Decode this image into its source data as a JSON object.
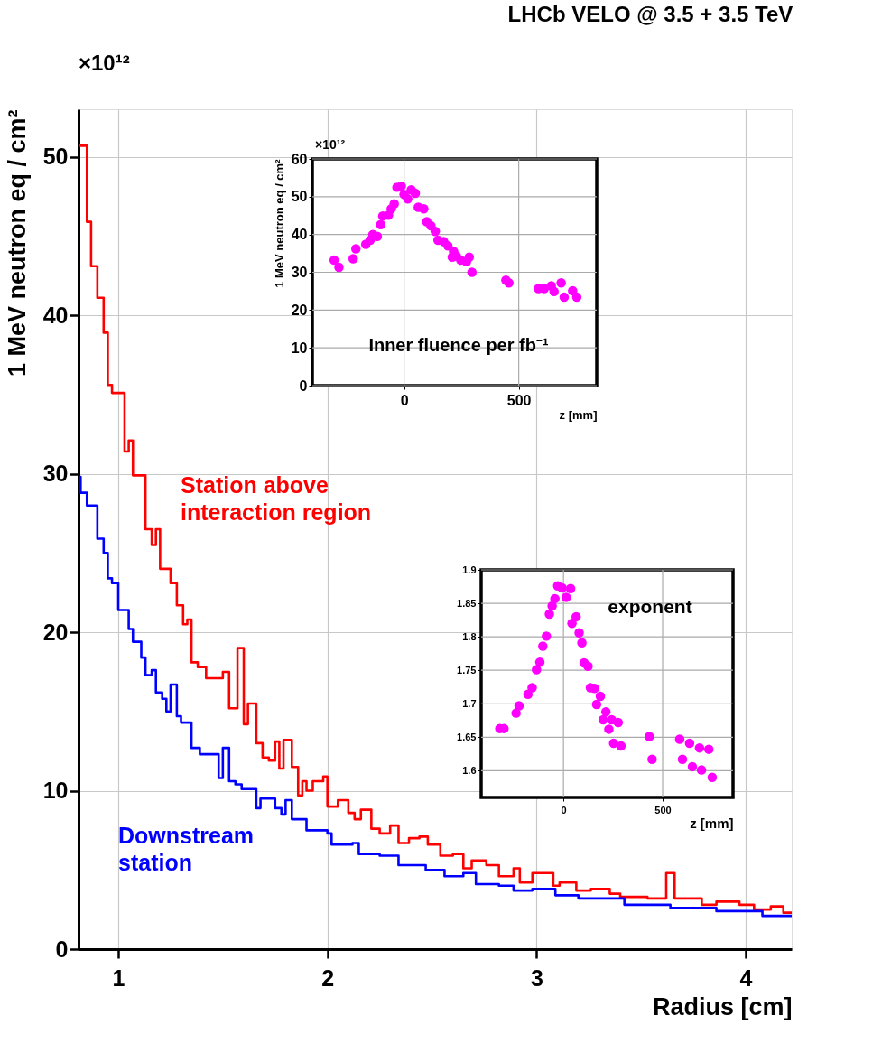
{
  "chart_data": [
    {
      "type": "step",
      "title": "LHCb VELO @ 3.5 + 3.5 TeV",
      "xlabel": "Radius [cm]",
      "ylabel": "1 MeV neutron eq / cm²",
      "annotations": [
        "×10¹²"
      ],
      "xlim": [
        0.81,
        4.22
      ],
      "xticks": [
        1,
        2,
        3,
        4
      ],
      "ylim": [
        0,
        53
      ],
      "yticks": [
        0,
        10,
        20,
        30,
        40,
        50
      ],
      "grid": true,
      "series": [
        {
          "name": "Station above interaction region",
          "color": "#ff0000",
          "x": [
            0.81,
            0.85,
            0.87,
            0.9,
            0.93,
            0.95,
            0.97,
            1.03,
            1.05,
            1.07,
            1.13,
            1.16,
            1.18,
            1.2,
            1.25,
            1.28,
            1.31,
            1.33,
            1.35,
            1.38,
            1.42,
            1.5,
            1.53,
            1.57,
            1.6,
            1.62,
            1.66,
            1.69,
            1.72,
            1.75,
            1.77,
            1.79,
            1.83,
            1.86,
            1.88,
            1.9,
            1.93,
            1.98,
            2.0,
            2.05,
            2.1,
            2.13,
            2.16,
            2.21,
            2.25,
            2.3,
            2.34,
            2.39,
            2.44,
            2.48,
            2.54,
            2.6,
            2.65,
            2.69,
            2.76,
            2.82,
            2.89,
            2.92,
            2.98,
            3.08,
            3.11,
            3.19,
            3.26,
            3.35,
            3.4,
            3.53,
            3.62,
            3.66,
            3.7,
            3.79,
            3.86,
            3.97,
            4.04,
            4.12,
            4.18,
            4.22
          ],
          "values": [
            50.7,
            45.9,
            43.1,
            41.1,
            38.9,
            35.6,
            35.1,
            31.4,
            32.1,
            29.9,
            26.5,
            25.5,
            26.5,
            24.0,
            23.1,
            21.7,
            20.5,
            20.8,
            18.1,
            17.8,
            17.1,
            17.5,
            15.2,
            19.0,
            14.2,
            15.5,
            13.0,
            12.1,
            11.9,
            13.1,
            11.4,
            13.2,
            11.5,
            9.7,
            10.6,
            10.0,
            10.6,
            10.9,
            9.0,
            9.4,
            8.6,
            8.2,
            8.8,
            7.6,
            7.3,
            7.8,
            6.7,
            7.0,
            7.1,
            6.6,
            5.9,
            6.0,
            5.1,
            5.6,
            5.3,
            4.6,
            5.1,
            4.2,
            4.8,
            4.0,
            4.2,
            3.7,
            3.8,
            3.5,
            3.3,
            3.2,
            4.8,
            3.2,
            3.2,
            2.8,
            3.0,
            2.8,
            2.5,
            2.7,
            2.3,
            2.3
          ]
        },
        {
          "name": "Downstream station",
          "color": "#0000ff",
          "x": [
            0.81,
            0.82,
            0.85,
            0.9,
            0.93,
            0.95,
            0.97,
            1.0,
            1.05,
            1.07,
            1.11,
            1.13,
            1.16,
            1.18,
            1.21,
            1.23,
            1.25,
            1.28,
            1.3,
            1.35,
            1.39,
            1.48,
            1.5,
            1.53,
            1.56,
            1.59,
            1.66,
            1.68,
            1.75,
            1.78,
            1.8,
            1.83,
            1.9,
            2.0,
            2.02,
            2.12,
            2.15,
            2.25,
            2.34,
            2.47,
            2.56,
            2.65,
            2.71,
            2.82,
            2.89,
            2.98,
            3.09,
            3.2,
            3.42,
            3.64,
            3.86,
            4.08,
            4.22
          ],
          "values": [
            29.8,
            28.8,
            28.0,
            25.9,
            25.0,
            23.4,
            23.1,
            21.4,
            20.2,
            19.4,
            18.4,
            17.3,
            17.6,
            16.2,
            15.8,
            15.0,
            16.7,
            14.7,
            14.3,
            12.7,
            12.3,
            10.8,
            12.7,
            10.6,
            10.4,
            10.1,
            8.9,
            9.5,
            8.9,
            8.5,
            9.4,
            8.2,
            7.5,
            7.3,
            6.6,
            6.7,
            6.0,
            5.9,
            5.3,
            5.0,
            4.6,
            4.8,
            4.1,
            4.0,
            3.7,
            3.8,
            3.4,
            3.2,
            2.8,
            2.6,
            2.4,
            2.1,
            2.1
          ]
        }
      ]
    },
    {
      "type": "scatter",
      "xlabel": "z [mm]",
      "ylabel": "1 MeV neutron eq / cm²",
      "annotations": [
        "×10¹²",
        "Inner fluence per fb⁻¹"
      ],
      "xlim": [
        -400,
        840
      ],
      "xticks": [
        0,
        500
      ],
      "ylim": [
        0,
        60
      ],
      "yticks": [
        0,
        10,
        20,
        30,
        40,
        50,
        60
      ],
      "grid": true,
      "marker": "circle",
      "color": "#ff00ff",
      "x": [
        -305,
        -284,
        -222,
        -210,
        -167,
        -148,
        -136,
        -117,
        -102,
        -93,
        -68,
        -56,
        -43,
        -31,
        -12,
        0,
        16,
        31,
        49,
        62,
        86,
        99,
        117,
        136,
        148,
        173,
        191,
        216,
        210,
        228,
        247,
        272,
        284,
        296,
        444,
        457,
        586,
        611,
        642,
        654,
        685,
        698,
        735,
        753
      ],
      "values": [
        33.2,
        31.3,
        33.6,
        36.2,
        37.4,
        38.5,
        40.0,
        39.5,
        42.6,
        44.9,
        45.1,
        46.8,
        48.1,
        52.5,
        52.8,
        50.6,
        49.4,
        51.8,
        50.9,
        47.2,
        46.8,
        43.4,
        42.3,
        40.8,
        38.5,
        38.1,
        37.0,
        35.5,
        34.0,
        34.3,
        33.2,
        32.8,
        34.0,
        30.0,
        27.9,
        27.2,
        25.7,
        25.7,
        26.4,
        24.9,
        27.2,
        23.4,
        25.1,
        23.4
      ]
    },
    {
      "type": "scatter",
      "xlabel": "z [mm]",
      "annotations": [
        "exponent"
      ],
      "xlim": [
        -415,
        855
      ],
      "xticks": [
        0,
        500
      ],
      "ylim": [
        1.56,
        1.9
      ],
      "yticks": [
        1.6,
        1.65,
        1.7,
        1.75,
        1.8,
        1.85,
        1.9
      ],
      "grid": true,
      "marker": "circle",
      "color": "#ff00ff",
      "x": [
        -321,
        -300,
        -239,
        -224,
        -179,
        -158,
        -136,
        -119,
        -104,
        -86,
        -71,
        -57,
        -43,
        -29,
        -7,
        14,
        36,
        43,
        64,
        79,
        93,
        104,
        124,
        136,
        157,
        167,
        186,
        200,
        214,
        229,
        243,
        253,
        276,
        290,
        433,
        447,
        586,
        600,
        636,
        650,
        686,
        696,
        733,
        750
      ],
      "values": [
        1.663,
        1.663,
        1.686,
        1.697,
        1.714,
        1.724,
        1.751,
        1.762,
        1.786,
        1.801,
        1.834,
        1.846,
        1.857,
        1.876,
        1.873,
        1.859,
        1.872,
        1.82,
        1.83,
        1.806,
        1.791,
        1.761,
        1.756,
        1.724,
        1.723,
        1.699,
        1.711,
        1.676,
        1.688,
        1.662,
        1.676,
        1.641,
        1.672,
        1.637,
        1.651,
        1.617,
        1.647,
        1.617,
        1.641,
        1.606,
        1.634,
        1.601,
        1.632,
        1.59
      ]
    }
  ]
}
